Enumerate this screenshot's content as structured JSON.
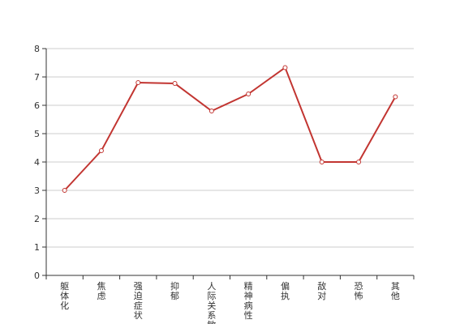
{
  "chart_data": {
    "type": "line",
    "categories": [
      "躯体化",
      "焦虑",
      "强迫症状",
      "抑郁",
      "人际关系敏感",
      "精神病性",
      "偏执",
      "敌对",
      "恐怖",
      "其他"
    ],
    "series": [
      {
        "values": [
          3.0,
          4.4,
          6.8,
          6.77,
          5.8,
          6.4,
          7.33,
          4.0,
          4.0,
          6.3
        ]
      }
    ],
    "title": "",
    "xlabel": "",
    "ylabel": "",
    "ylim": [
      0,
      8
    ],
    "yticks": [
      0,
      1,
      2,
      3,
      4,
      5,
      6,
      7,
      8
    ],
    "grid": true,
    "legend": "none",
    "colors": {
      "line": "#c23531",
      "grid": "#cccccc",
      "axis": "#333333",
      "point_fill": "#ffffff"
    }
  }
}
